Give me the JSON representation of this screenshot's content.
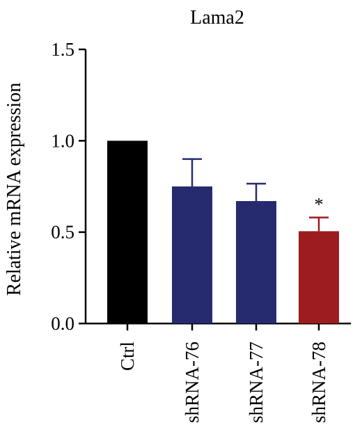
{
  "chart_data": {
    "type": "bar",
    "title": "Lama2",
    "xlabel": "",
    "ylabel": "Relative mRNA expression",
    "ylim": [
      0,
      1.5
    ],
    "yticks": [
      "0.0",
      "0.5",
      "1.0",
      "1.5"
    ],
    "grid": false,
    "categories": [
      "Ctrl",
      "shRNA-76",
      "shRNA-77",
      "shRNA-78"
    ],
    "values": [
      1.0,
      0.75,
      0.67,
      0.505
    ],
    "errors": [
      0,
      0.15,
      0.095,
      0.075
    ],
    "significance": [
      "",
      "",
      "",
      "*"
    ],
    "colors": [
      "#000000",
      "#262b70",
      "#262b70",
      "#9c1c1f"
    ]
  }
}
